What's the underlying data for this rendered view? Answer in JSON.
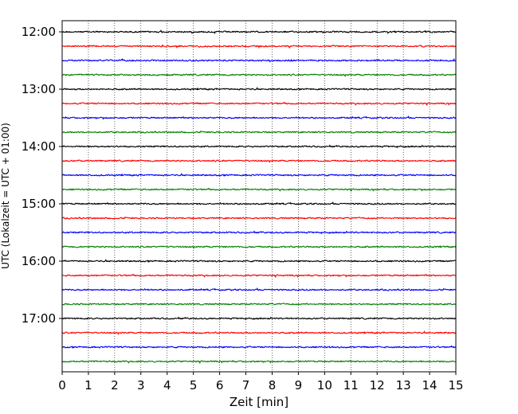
{
  "chart_data": {
    "type": "line",
    "title": "",
    "xlabel": "Zeit  [min]",
    "ylabel": "UTC (Lokalzeit = UTC + 01:00)",
    "xlim": [
      0,
      15
    ],
    "x_ticks": [
      0,
      1,
      2,
      3,
      4,
      5,
      6,
      7,
      8,
      9,
      10,
      11,
      12,
      13,
      14,
      15
    ],
    "x_tick_labels": [
      "0",
      "1",
      "2",
      "3",
      "4",
      "5",
      "6",
      "7",
      "8",
      "9",
      "10",
      "11",
      "12",
      "13",
      "14",
      "15"
    ],
    "y_tick_labels": [
      "12:00",
      "13:00",
      "14:00",
      "15:00",
      "16:00",
      "17:00"
    ],
    "grid": "vertical dotted lines at x ticks",
    "trace_start": "12:00",
    "trace_interval_minutes": 15,
    "trace_count": 24,
    "trace_colors": [
      "#000000",
      "#ff0000",
      "#0000ff",
      "#008000"
    ]
  }
}
